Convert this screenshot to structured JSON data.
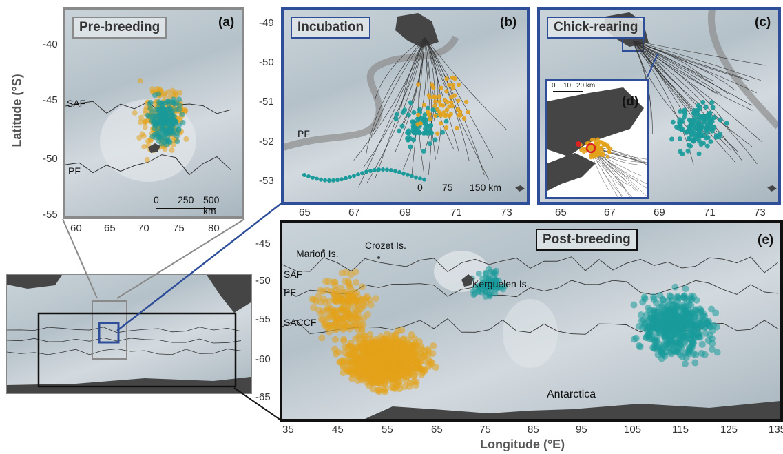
{
  "axes": {
    "ylabel": "Latitude (°S)",
    "xlabel": "Longitude (°E)"
  },
  "colors": {
    "post_group_a": "#e3a21a",
    "post_group_b": "#1a9a9a",
    "frame_grey": "#8a8a8a",
    "frame_blue": "#2f4e9a",
    "frame_black": "#111111",
    "land": "#454545"
  },
  "panels": {
    "a": {
      "letter": "(a)",
      "title": "Pre-breeding",
      "yticks": [
        "-40",
        "-45",
        "-50",
        "-55"
      ],
      "xticks": [
        "60",
        "65",
        "70",
        "75",
        "80"
      ],
      "fronts": [
        "SAF",
        "PF"
      ],
      "scale": [
        "0",
        "250",
        "500 km"
      ]
    },
    "b": {
      "letter": "(b)",
      "title": "Incubation",
      "yticks": [
        "-49",
        "-50",
        "-51",
        "-52",
        "-53"
      ],
      "xticks": [
        "65",
        "67",
        "69",
        "71",
        "73"
      ],
      "fronts": [
        "PF"
      ],
      "scale": [
        "0",
        "75",
        "150 km"
      ]
    },
    "c": {
      "letter": "(c)",
      "title": "Chick-rearing",
      "xticks": [
        "65",
        "67",
        "69",
        "71",
        "73"
      ]
    },
    "d": {
      "letter": "(d)",
      "scale": [
        "0",
        "10",
        "20 km"
      ]
    },
    "e": {
      "letter": "(e)",
      "title": "Post-breeding",
      "yticks": [
        "-45",
        "-50",
        "-55",
        "-60",
        "-65"
      ],
      "xticks": [
        "35",
        "45",
        "55",
        "65",
        "75",
        "85",
        "95",
        "105",
        "115",
        "125",
        "135"
      ],
      "places": [
        "Marion Is.",
        "Crozet Is.",
        "Kerguelen Is.",
        "Antarctica"
      ],
      "fronts": [
        "SAF",
        "PF",
        "SACCF"
      ]
    }
  }
}
